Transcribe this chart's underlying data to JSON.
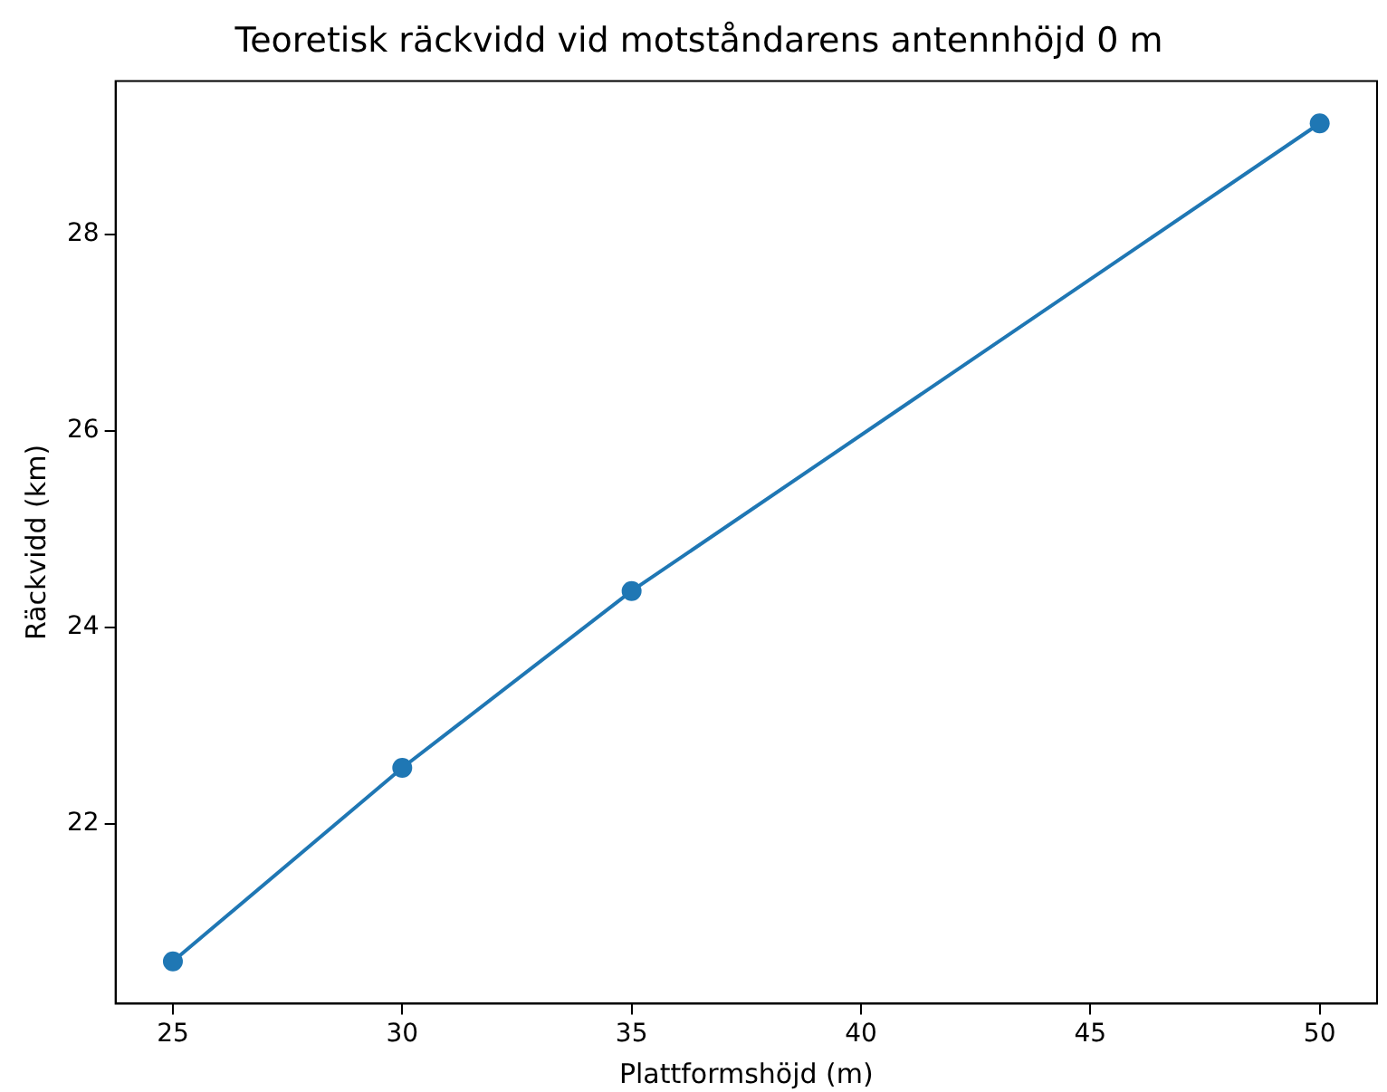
{
  "chart_data": {
    "type": "line",
    "title": "Teoretisk räckvidd vid motståndarens antennhöjd 0 m",
    "xlabel": "Plattformshöjd (m)",
    "ylabel": "Räckvidd (km)",
    "x": [
      25,
      30,
      35,
      50
    ],
    "series": [
      {
        "color": "#1f77b4",
        "values": [
          20.6,
          22.57,
          24.37,
          29.13
        ]
      }
    ],
    "xlim": [
      23.75,
      51.25
    ],
    "xticks": [
      25,
      30,
      35,
      40,
      45,
      50
    ],
    "ylim": [
      20.17,
      29.56
    ],
    "yticks": [
      22,
      24,
      26,
      28
    ],
    "grid": false,
    "legend": false,
    "marker": "circle",
    "line_style": "solid"
  }
}
